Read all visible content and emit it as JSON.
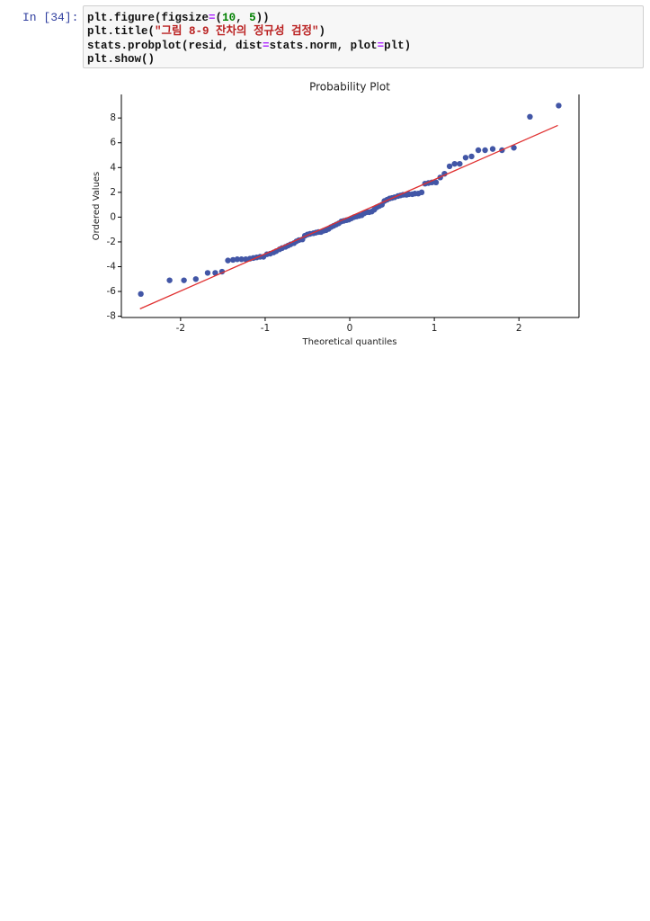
{
  "cell": {
    "prompt": "In [34]:",
    "code": [
      "plt.figure(figsize=(10, 5))",
      "plt.title(\"그림 8-9 잔차의 정규성 검정\")",
      "stats.probplot(resid, dist=stats.norm, plot=plt)",
      "plt.show()"
    ]
  },
  "chart_data": {
    "type": "scatter",
    "title": "Probability Plot",
    "xlabel": "Theoretical quantiles",
    "ylabel": "Ordered Values",
    "xlim": [
      -2.7,
      2.71
    ],
    "ylim": [
      -8.1,
      9.9
    ],
    "xticks": [
      -2,
      -1,
      0,
      1,
      2
    ],
    "yticks": [
      -8,
      -6,
      -4,
      -2,
      0,
      2,
      4,
      6,
      8
    ],
    "color": "#4256a6",
    "x": [
      -2.47,
      -2.13,
      -1.96,
      -1.82,
      -1.68,
      -1.59,
      -1.51,
      -1.44,
      -1.38,
      -1.33,
      -1.28,
      -1.23,
      -1.18,
      -1.14,
      -1.1,
      -1.06,
      -1.02,
      -0.98,
      -0.94,
      -0.9,
      -0.87,
      -0.83,
      -0.8,
      -0.76,
      -0.73,
      -0.7,
      -0.66,
      -0.63,
      -0.6,
      -0.56,
      -0.53,
      -0.5,
      -0.47,
      -0.43,
      -0.4,
      -0.37,
      -0.34,
      -0.31,
      -0.28,
      -0.25,
      -0.22,
      -0.19,
      -0.16,
      -0.13,
      -0.1,
      -0.07,
      -0.04,
      -0.01,
      0.02,
      0.05,
      0.08,
      0.11,
      0.14,
      0.17,
      0.2,
      0.23,
      0.26,
      0.29,
      0.32,
      0.35,
      0.38,
      0.41,
      0.44,
      0.47,
      0.5,
      0.53,
      0.57,
      0.6,
      0.63,
      0.67,
      0.7,
      0.74,
      0.77,
      0.81,
      0.85,
      0.89,
      0.93,
      0.97,
      1.02,
      1.07,
      1.12,
      1.18,
      1.24,
      1.3,
      1.37,
      1.44,
      1.52,
      1.6,
      1.69,
      1.8,
      1.94,
      2.13,
      2.47
    ],
    "values": [
      -6.2,
      -5.1,
      -5.1,
      -5.0,
      -4.5,
      -4.5,
      -4.4,
      -3.5,
      -3.45,
      -3.4,
      -3.4,
      -3.4,
      -3.35,
      -3.3,
      -3.25,
      -3.2,
      -3.2,
      -3.0,
      -2.95,
      -2.85,
      -2.75,
      -2.6,
      -2.5,
      -2.4,
      -2.3,
      -2.2,
      -2.1,
      -1.95,
      -1.85,
      -1.8,
      -1.5,
      -1.4,
      -1.35,
      -1.3,
      -1.25,
      -1.2,
      -1.2,
      -1.1,
      -1.05,
      -0.95,
      -0.8,
      -0.7,
      -0.6,
      -0.5,
      -0.35,
      -0.3,
      -0.25,
      -0.2,
      -0.1,
      0.0,
      0.05,
      0.1,
      0.15,
      0.3,
      0.4,
      0.4,
      0.45,
      0.6,
      0.8,
      0.9,
      1.0,
      1.3,
      1.4,
      1.5,
      1.55,
      1.6,
      1.7,
      1.75,
      1.8,
      1.8,
      1.85,
      1.85,
      1.9,
      1.9,
      2.0,
      2.7,
      2.75,
      2.8,
      2.8,
      3.2,
      3.5,
      4.1,
      4.3,
      4.3,
      4.8,
      4.9,
      5.4,
      5.4,
      5.5,
      5.4,
      5.6,
      8.1,
      9.0
    ],
    "fit_line": {
      "x": [
        -2.48,
        2.46
      ],
      "values": [
        -7.4,
        7.4
      ],
      "color": "#e03030"
    }
  }
}
